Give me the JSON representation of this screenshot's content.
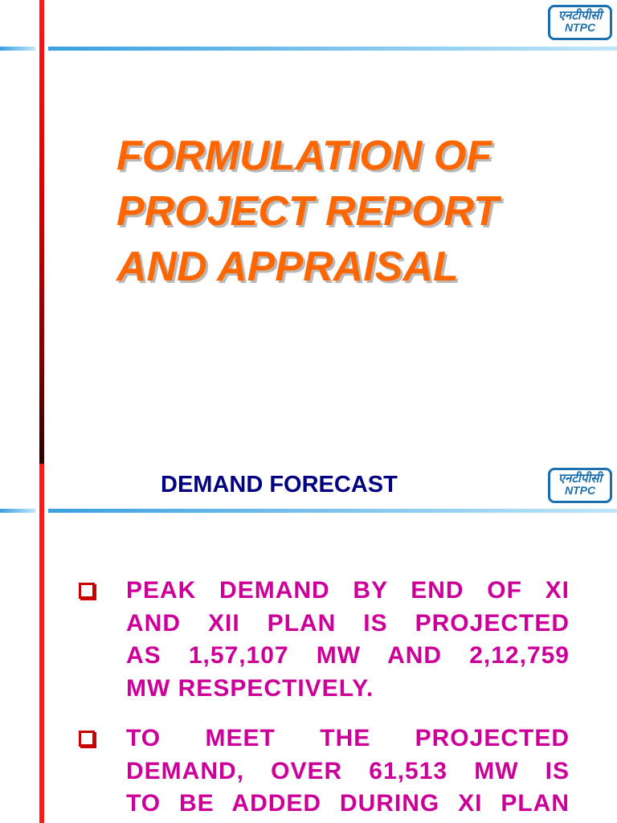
{
  "logo": {
    "hindi": "एनटीपीसी",
    "english": "NTPC"
  },
  "slide1": {
    "title_lines": [
      "FORMULATION OF",
      "PROJECT REPORT",
      "AND APPRAISAL"
    ]
  },
  "slide2": {
    "heading": "DEMAND FORECAST",
    "bullets": [
      {
        "lines": [
          "PEAK DEMAND BY END OF XI",
          "AND XII PLAN IS PROJECTED",
          "AS 1,57,107 MW AND 2,12,759",
          "MW RESPECTIVELY."
        ]
      },
      {
        "lines": [
          "TO MEET THE PROJECTED",
          "DEMAND, OVER 61,513 MW IS",
          "TO BE ADDED DURING XI PLAN"
        ]
      }
    ]
  }
}
